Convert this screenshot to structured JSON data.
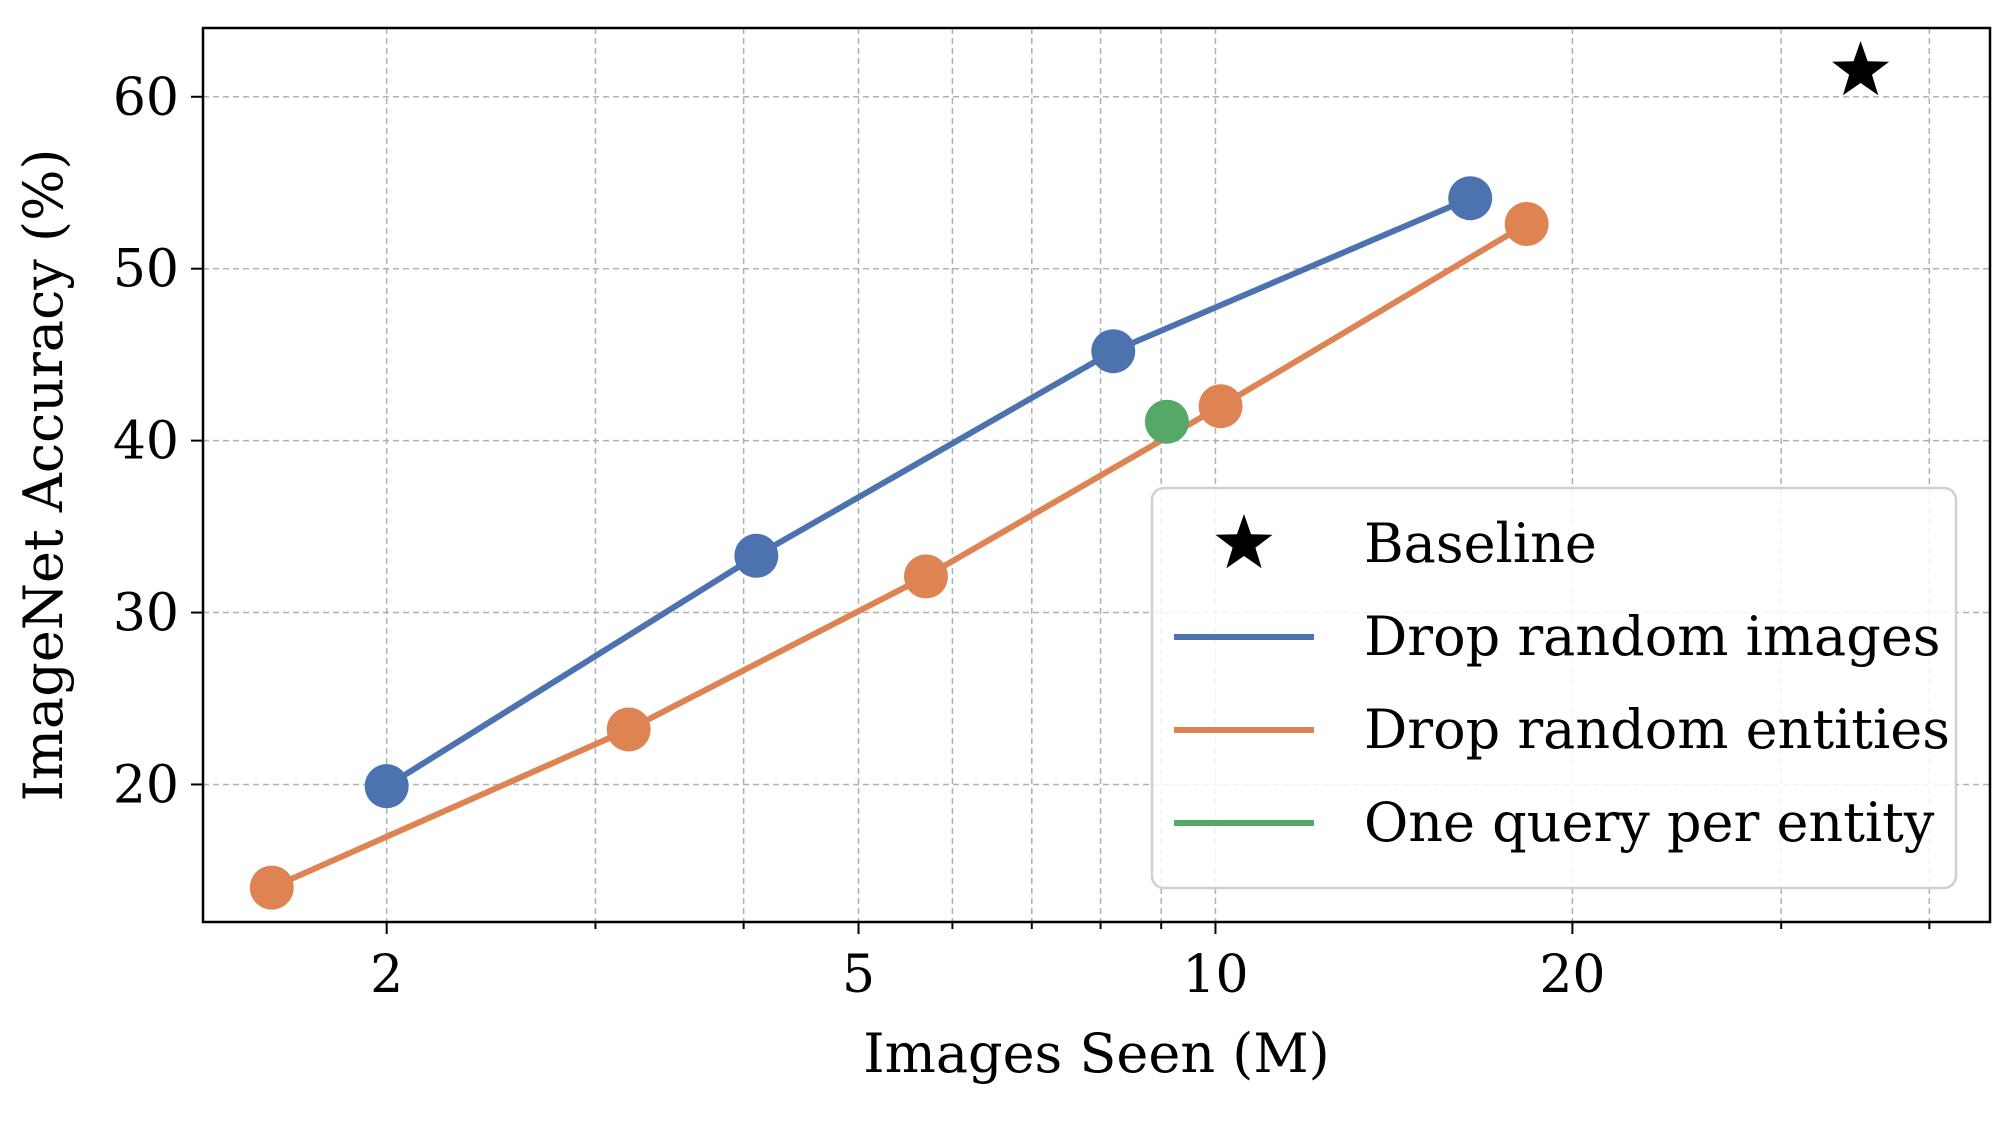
{
  "chart_data": {
    "type": "line",
    "xlabel": "Images Seen (M)",
    "ylabel": "ImageNet Accuracy (%)",
    "xscale": "log",
    "xlim": [
      1.4,
      45
    ],
    "ylim": [
      12,
      64
    ],
    "xticks": [
      {
        "value": 2,
        "label": "2"
      },
      {
        "value": 5,
        "label": "5"
      },
      {
        "value": 10,
        "label": "10"
      },
      {
        "value": 20,
        "label": "20"
      }
    ],
    "xminor": [
      3,
      4,
      6,
      7,
      8,
      9,
      30,
      40
    ],
    "yticks": [
      {
        "value": 20,
        "label": "20"
      },
      {
        "value": 30,
        "label": "30"
      },
      {
        "value": 40,
        "label": "40"
      },
      {
        "value": 50,
        "label": "50"
      },
      {
        "value": 60,
        "label": "60"
      }
    ],
    "grid": true,
    "legend_position": "lower right",
    "series": [
      {
        "name": "Drop random images",
        "color": "#4c72b0",
        "marker": "circle",
        "points": [
          {
            "x": 2.0,
            "y": 19.9
          },
          {
            "x": 4.1,
            "y": 33.3
          },
          {
            "x": 8.2,
            "y": 45.2
          },
          {
            "x": 16.4,
            "y": 54.1
          }
        ]
      },
      {
        "name": "Drop random entities",
        "color": "#dd8452",
        "marker": "circle",
        "points": [
          {
            "x": 1.6,
            "y": 14.0
          },
          {
            "x": 3.2,
            "y": 23.2
          },
          {
            "x": 5.7,
            "y": 32.1
          },
          {
            "x": 10.1,
            "y": 42.0
          },
          {
            "x": 18.3,
            "y": 52.6
          }
        ]
      },
      {
        "name": "One query per entity",
        "color": "#55a868",
        "marker": "circle",
        "points": [
          {
            "x": 9.1,
            "y": 41.1
          }
        ]
      },
      {
        "name": "Baseline",
        "color": "#000000",
        "marker": "star",
        "points": [
          {
            "x": 35.0,
            "y": 61.5
          }
        ]
      }
    ]
  }
}
